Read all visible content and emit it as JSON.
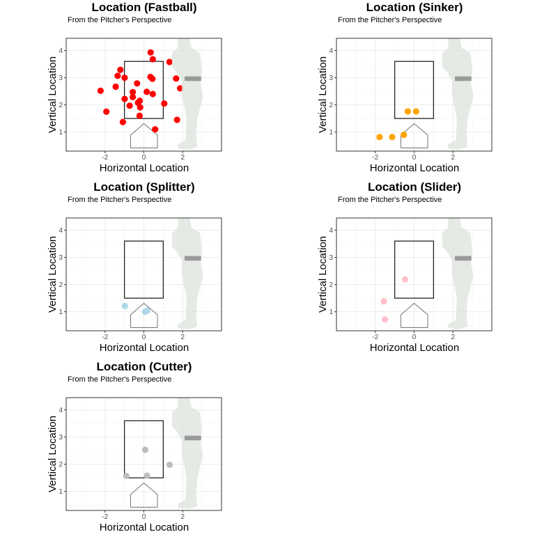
{
  "common": {
    "subtitle": "From the Pitcher's Perspective",
    "xlabel": "Horizontal Location",
    "ylabel": "Vertical Location",
    "xticks": [
      "-2",
      "0",
      "2"
    ],
    "yticks": [
      "1",
      "2",
      "3",
      "4"
    ]
  },
  "chart_data": [
    {
      "type": "scatter",
      "title": "Location (Fastball)",
      "subtitle": "From the Pitcher's Perspective",
      "xlabel": "Horizontal Location",
      "ylabel": "Vertical Location",
      "xlim": [
        -4,
        4
      ],
      "ylim": [
        0.3,
        4.45
      ],
      "color": "#ff0000",
      "points": [
        [
          0.35,
          3.93
        ],
        [
          0.46,
          3.68
        ],
        [
          1.32,
          3.58
        ],
        [
          -1.21,
          3.29
        ],
        [
          -1.35,
          3.07
        ],
        [
          -0.99,
          3.0
        ],
        [
          0.34,
          3.03
        ],
        [
          0.44,
          2.96
        ],
        [
          1.66,
          2.97
        ],
        [
          -0.35,
          2.79
        ],
        [
          -1.45,
          2.67
        ],
        [
          -2.23,
          2.52
        ],
        [
          -0.57,
          2.47
        ],
        [
          0.15,
          2.48
        ],
        [
          0.46,
          2.4
        ],
        [
          1.87,
          2.61
        ],
        [
          -0.57,
          2.29
        ],
        [
          -0.99,
          2.22
        ],
        [
          -0.21,
          2.15
        ],
        [
          -0.3,
          2.08
        ],
        [
          -0.73,
          1.97
        ],
        [
          -0.19,
          1.91
        ],
        [
          1.05,
          2.05
        ],
        [
          -1.93,
          1.75
        ],
        [
          -0.22,
          1.6
        ],
        [
          -1.08,
          1.37
        ],
        [
          1.71,
          1.45
        ],
        [
          0.58,
          1.1
        ]
      ]
    },
    {
      "type": "scatter",
      "title": "Location (Sinker)",
      "subtitle": "From the Pitcher's Perspective",
      "xlabel": "Horizontal Location",
      "ylabel": "Vertical Location",
      "xlim": [
        -4,
        4
      ],
      "ylim": [
        0.3,
        4.45
      ],
      "color": "#ffa500",
      "points": [
        [
          -1.78,
          0.82
        ],
        [
          -1.13,
          0.82
        ],
        [
          -0.53,
          0.9
        ],
        [
          -0.33,
          1.76
        ],
        [
          0.1,
          1.76
        ]
      ]
    },
    {
      "type": "scatter",
      "title": "Location (Splitter)",
      "subtitle": "From the Pitcher's Perspective",
      "xlabel": "Horizontal Location",
      "ylabel": "Vertical Location",
      "xlim": [
        -4,
        4
      ],
      "ylim": [
        0.3,
        4.45
      ],
      "color": "#add8e6",
      "points": [
        [
          -0.98,
          1.21
        ],
        [
          0.07,
          1.0
        ],
        [
          0.17,
          1.04
        ]
      ]
    },
    {
      "type": "scatter",
      "title": "Location (Slider)",
      "subtitle": "From the Pitcher's Perspective",
      "xlabel": "Horizontal Location",
      "ylabel": "Vertical Location",
      "xlim": [
        -4,
        4
      ],
      "ylim": [
        0.3,
        4.45
      ],
      "color": "#ffc0cb",
      "points": [
        [
          -0.47,
          2.19
        ],
        [
          -1.56,
          1.38
        ],
        [
          -1.5,
          0.72
        ]
      ]
    },
    {
      "type": "scatter",
      "title": "Location (Cutter)",
      "subtitle": "From the Pitcher's Perspective",
      "xlabel": "Horizontal Location",
      "ylabel": "Vertical Location",
      "xlim": [
        -4,
        4
      ],
      "ylim": [
        0.3,
        4.45
      ],
      "color": "#bebebe",
      "points": [
        [
          0.07,
          2.53
        ],
        [
          1.33,
          1.98
        ],
        [
          -0.91,
          1.57
        ],
        [
          0.16,
          1.58
        ]
      ]
    }
  ],
  "strike_zone": {
    "x": [
      -1,
      1
    ],
    "y": [
      1.5,
      3.6
    ]
  },
  "grid": true
}
